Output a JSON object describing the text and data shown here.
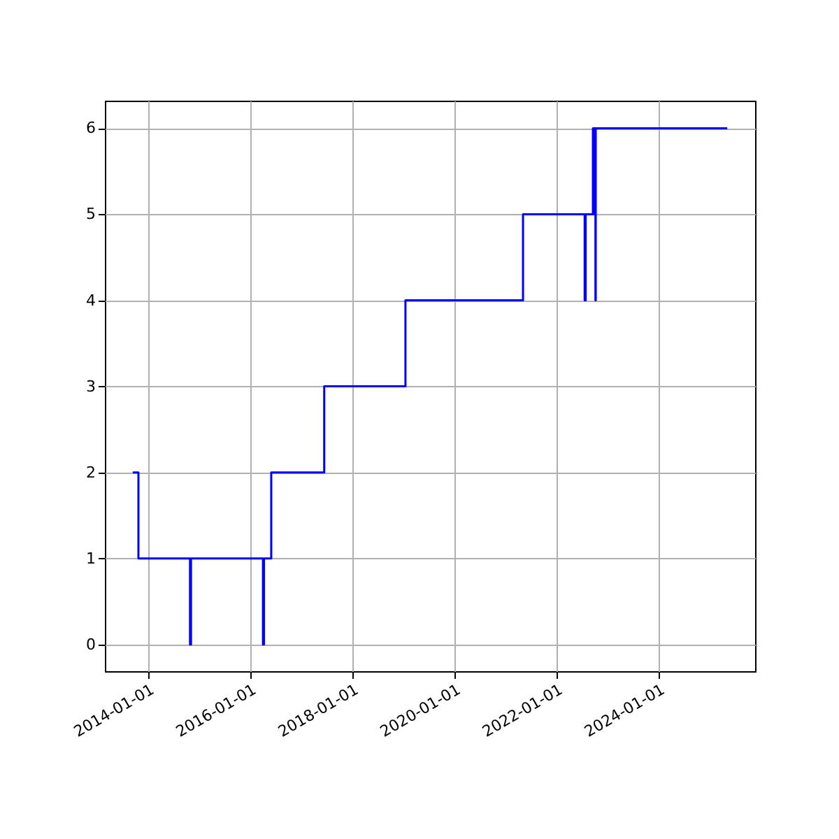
{
  "chart_data": {
    "type": "step",
    "color": "#0000ff",
    "x": [
      "2013-09-12",
      "2013-10-23",
      "2014-10-27",
      "2014-11-03",
      "2016-04-01",
      "2016-04-08",
      "2016-05-30",
      "2017-06-13",
      "2019-01-15",
      "2021-05-05",
      "2022-07-20",
      "2022-07-27",
      "2022-09-17",
      "2022-09-20",
      "2022-09-24",
      "2022-10-05",
      "2022-10-07",
      "2025-05-05"
    ],
    "values": [
      2,
      1,
      0,
      1,
      0,
      1,
      2,
      3,
      4,
      5,
      4,
      5,
      6,
      5,
      6,
      4,
      6,
      6
    ],
    "xlim": [
      "2013-02-25",
      "2025-11-20"
    ],
    "ylim": [
      -0.31,
      6.32
    ],
    "xticks": [
      "2014-01-01",
      "2016-01-01",
      "2018-01-01",
      "2020-01-01",
      "2022-01-01",
      "2024-01-01"
    ],
    "yticks": [
      0,
      1,
      2,
      3,
      4,
      5,
      6
    ],
    "grid": true,
    "line_style": "solid"
  }
}
